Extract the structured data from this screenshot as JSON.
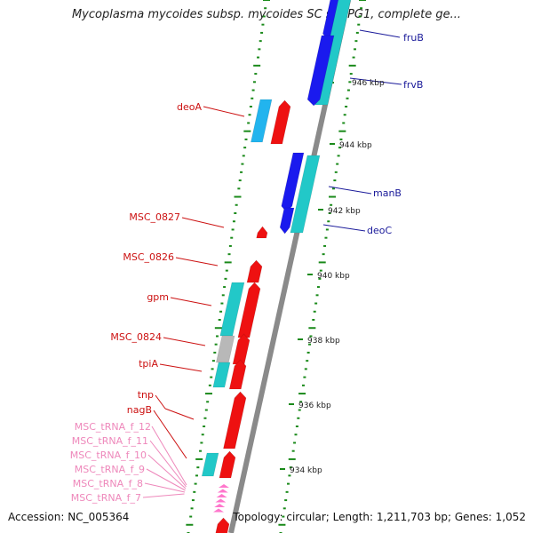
{
  "title": "Mycoplasma mycoides subsp. mycoides SC str. PG1, complete ge...",
  "footer": {
    "accession": "Accession: NC_005364",
    "summary": "Topology: circular; Length: 1,211,703 bp; Genes: 1,052"
  },
  "colors": {
    "backbone": "#8a8a8a",
    "cds_forward": "#1a1aee",
    "cds_reverse": "#ee1111",
    "cds_cyan": "#22c8c8",
    "cds_lightblue": "#22b4ee",
    "trna": "#ff77cc",
    "label_forward": "#1a1a9a",
    "label_reverse": "#cc1111",
    "label_trna": "#ee88bb",
    "tick": "#1a8a1a"
  },
  "forward_labels": [
    "fruB",
    "frvB",
    "manB",
    "deoC"
  ],
  "reverse_labels": [
    "deoA",
    "MSC_0827",
    "MSC_0826",
    "gpm",
    "MSC_0824",
    "tpiA",
    "tnp",
    "nagB"
  ],
  "trna_labels": [
    "MSC_tRNA_f_12",
    "MSC_tRNA_f_11",
    "MSC_tRNA_f_10",
    "MSC_tRNA_f_9",
    "MSC_tRNA_f_8",
    "MSC_tRNA_f_7"
  ],
  "position_labels": [
    "946 kbp",
    "944 kbp",
    "942 kbp",
    "940 kbp",
    "938 kbp",
    "936 kbp",
    "934 kbp"
  ]
}
